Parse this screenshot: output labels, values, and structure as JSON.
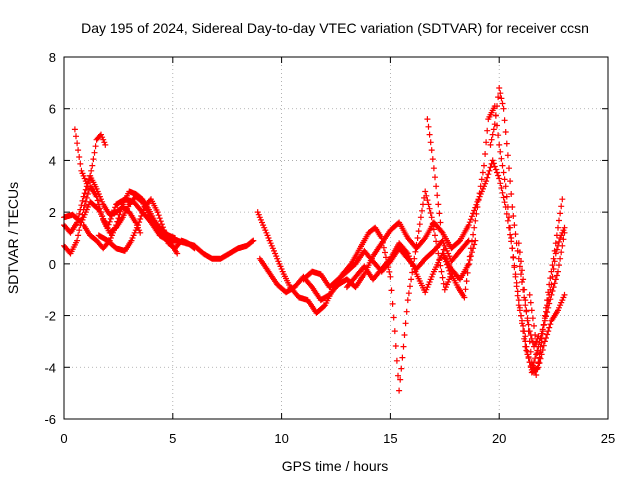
{
  "chart_data": {
    "type": "scatter",
    "title": "Day 195 of 2024, Sidereal Day-to-day VTEC variation (SDTVAR) for receiver ccsn",
    "xlabel": "GPS time / hours",
    "ylabel": "SDTVAR / TECUs",
    "xlim": [
      0,
      25
    ],
    "ylim": [
      -6,
      8
    ],
    "xticks": [
      0,
      5,
      10,
      15,
      20,
      25
    ],
    "yticks": [
      -6,
      -4,
      -2,
      0,
      2,
      4,
      6,
      8
    ],
    "grid": true,
    "marker": "+",
    "color": "#ff0000",
    "series": [
      {
        "name": "trace-1",
        "points": [
          [
            0.0,
            1.8
          ],
          [
            0.4,
            1.9
          ],
          [
            0.8,
            1.6
          ],
          [
            1.2,
            2.4
          ],
          [
            1.6,
            2.1
          ],
          [
            2.0,
            1.4
          ],
          [
            2.4,
            2.3
          ],
          [
            2.8,
            2.5
          ],
          [
            3.2,
            2.4
          ],
          [
            3.6,
            2.0
          ],
          [
            4.0,
            1.6
          ],
          [
            4.4,
            1.1
          ],
          [
            4.8,
            0.9
          ],
          [
            5.2,
            0.9
          ],
          [
            5.6,
            0.8
          ],
          [
            6.0,
            0.7
          ],
          [
            6.4,
            0.4
          ],
          [
            6.8,
            0.2
          ],
          [
            7.2,
            0.2
          ],
          [
            7.6,
            0.4
          ],
          [
            8.0,
            0.6
          ],
          [
            8.4,
            0.7
          ],
          [
            8.7,
            0.9
          ]
        ]
      },
      {
        "name": "trace-2",
        "points": [
          [
            0.0,
            0.7
          ],
          [
            0.3,
            0.4
          ],
          [
            0.6,
            0.9
          ],
          [
            0.9,
            2.1
          ],
          [
            1.2,
            3.0
          ],
          [
            1.5,
            2.6
          ],
          [
            1.8,
            1.7
          ],
          [
            2.1,
            1.2
          ],
          [
            2.4,
            1.4
          ],
          [
            2.7,
            1.8
          ],
          [
            3.0,
            2.3
          ],
          [
            3.3,
            2.6
          ],
          [
            3.6,
            2.4
          ],
          [
            3.9,
            1.9
          ],
          [
            4.2,
            1.6
          ],
          [
            4.5,
            1.3
          ],
          [
            4.8,
            1.1
          ],
          [
            5.1,
            1.0
          ]
        ]
      },
      {
        "name": "trace-3",
        "points": [
          [
            0.0,
            1.5
          ],
          [
            0.3,
            1.2
          ],
          [
            0.6,
            1.6
          ],
          [
            0.9,
            2.6
          ],
          [
            1.2,
            3.4
          ],
          [
            1.5,
            2.9
          ],
          [
            1.8,
            2.3
          ],
          [
            2.1,
            1.9
          ],
          [
            2.4,
            2.0
          ],
          [
            2.7,
            2.2
          ],
          [
            3.0,
            2.0
          ],
          [
            3.3,
            1.6
          ],
          [
            3.5,
            1.2
          ]
        ]
      },
      {
        "name": "trace-4",
        "points": [
          [
            0.5,
            5.2
          ],
          [
            0.8,
            3.6
          ],
          [
            1.1,
            3.0
          ],
          [
            1.3,
            3.8
          ],
          [
            1.5,
            4.8
          ],
          [
            1.7,
            5.0
          ],
          [
            1.9,
            4.6
          ]
        ]
      },
      {
        "name": "trace-5",
        "points": [
          [
            0.9,
            1.5
          ],
          [
            1.2,
            1.1
          ],
          [
            1.5,
            0.9
          ],
          [
            1.8,
            0.6
          ],
          [
            2.1,
            0.9
          ],
          [
            2.4,
            1.5
          ],
          [
            2.7,
            2.3
          ],
          [
            3.0,
            2.8
          ],
          [
            3.3,
            2.7
          ],
          [
            3.6,
            2.5
          ],
          [
            3.9,
            2.1
          ],
          [
            4.2,
            1.6
          ],
          [
            4.5,
            1.2
          ],
          [
            4.8,
            0.8
          ],
          [
            5.1,
            0.6
          ],
          [
            5.4,
            0.9
          ],
          [
            5.7,
            0.8
          ],
          [
            6.0,
            0.6
          ]
        ]
      },
      {
        "name": "trace-6",
        "points": [
          [
            1.6,
            1.1
          ],
          [
            2.0,
            0.9
          ],
          [
            2.4,
            0.6
          ],
          [
            2.8,
            0.5
          ],
          [
            3.1,
            0.9
          ],
          [
            3.4,
            1.5
          ],
          [
            3.7,
            2.2
          ],
          [
            4.0,
            2.5
          ],
          [
            4.3,
            2.0
          ],
          [
            4.6,
            1.3
          ],
          [
            4.9,
            0.8
          ],
          [
            5.2,
            0.4
          ]
        ]
      },
      {
        "name": "trace-7",
        "points": [
          [
            9.0,
            0.2
          ],
          [
            9.4,
            -0.3
          ],
          [
            9.8,
            -0.8
          ],
          [
            10.2,
            -1.1
          ],
          [
            10.6,
            -0.9
          ],
          [
            11.0,
            -0.5
          ],
          [
            11.4,
            -0.9
          ],
          [
            11.8,
            -1.4
          ],
          [
            12.2,
            -1.2
          ],
          [
            12.6,
            -0.8
          ],
          [
            13.0,
            -0.6
          ],
          [
            13.4,
            -0.9
          ],
          [
            13.8,
            -0.4
          ],
          [
            14.2,
            0.3
          ],
          [
            14.6,
            0.8
          ],
          [
            15.0,
            1.3
          ],
          [
            15.4,
            1.6
          ],
          [
            15.8,
            1.0
          ],
          [
            16.2,
            0.6
          ],
          [
            16.6,
            1.0
          ],
          [
            17.0,
            1.6
          ],
          [
            17.4,
            1.2
          ],
          [
            17.8,
            0.6
          ],
          [
            18.2,
            0.9
          ],
          [
            18.6,
            1.5
          ],
          [
            19.0,
            2.4
          ],
          [
            19.4,
            3.2
          ],
          [
            19.7,
            4.0
          ],
          [
            20.0,
            3.3
          ],
          [
            20.3,
            2.2
          ],
          [
            20.6,
            0.6
          ],
          [
            20.9,
            -1.4
          ],
          [
            21.2,
            -3.2
          ],
          [
            21.5,
            -4.1
          ],
          [
            21.8,
            -3.2
          ],
          [
            22.1,
            -2.2
          ],
          [
            22.4,
            -1.2
          ],
          [
            22.7,
            -0.3
          ],
          [
            23.0,
            1.2
          ]
        ]
      },
      {
        "name": "trace-8",
        "points": [
          [
            8.9,
            2.0
          ],
          [
            9.2,
            1.4
          ],
          [
            9.5,
            0.8
          ],
          [
            9.8,
            0.2
          ],
          [
            10.1,
            -0.4
          ],
          [
            10.4,
            -0.9
          ],
          [
            10.8,
            -1.3
          ],
          [
            11.2,
            -1.4
          ],
          [
            11.6,
            -1.9
          ],
          [
            12.0,
            -1.6
          ],
          [
            12.4,
            -0.9
          ],
          [
            12.8,
            -0.4
          ],
          [
            13.2,
            0.0
          ],
          [
            13.6,
            0.6
          ],
          [
            14.0,
            1.2
          ],
          [
            14.3,
            1.4
          ],
          [
            14.6,
            1.0
          ],
          [
            15.0,
            -0.5
          ],
          [
            15.2,
            -2.6
          ],
          [
            15.4,
            -4.9
          ],
          [
            15.6,
            -3.2
          ],
          [
            15.8,
            -1.4
          ],
          [
            16.1,
            0.2
          ],
          [
            16.4,
            1.8
          ],
          [
            16.6,
            2.8
          ],
          [
            16.9,
            1.8
          ],
          [
            17.2,
            0.4
          ],
          [
            17.5,
            -1.0
          ],
          [
            17.8,
            -0.4
          ],
          [
            18.1,
            -0.9
          ],
          [
            18.4,
            -1.3
          ],
          [
            18.7,
            0.6
          ],
          [
            19.0,
            2.2
          ],
          [
            19.3,
            3.8
          ],
          [
            19.5,
            5.6
          ],
          [
            19.8,
            6.1
          ],
          [
            20.0,
            4.6
          ],
          [
            20.3,
            3.0
          ],
          [
            20.6,
            0.6
          ],
          [
            20.9,
            -1.6
          ],
          [
            21.2,
            -2.8
          ]
        ]
      },
      {
        "name": "trace-9",
        "points": [
          [
            11.0,
            -0.6
          ],
          [
            11.4,
            -0.3
          ],
          [
            11.8,
            -0.4
          ],
          [
            12.2,
            -0.9
          ],
          [
            12.6,
            -0.6
          ],
          [
            13.0,
            -0.3
          ],
          [
            13.4,
            0.0
          ],
          [
            13.8,
            0.5
          ],
          [
            14.2,
            0.1
          ],
          [
            14.6,
            -0.3
          ],
          [
            15.0,
            0.1
          ],
          [
            15.4,
            0.6
          ],
          [
            15.8,
            0.2
          ],
          [
            16.2,
            -0.2
          ],
          [
            16.6,
            0.2
          ],
          [
            17.0,
            0.5
          ],
          [
            17.4,
            0.9
          ],
          [
            17.8,
            0.1
          ],
          [
            18.2,
            0.5
          ],
          [
            18.6,
            0.9
          ]
        ]
      },
      {
        "name": "trace-10",
        "points": [
          [
            13.0,
            -0.9
          ],
          [
            13.4,
            -0.5
          ],
          [
            13.8,
            -0.1
          ],
          [
            14.2,
            -0.6
          ],
          [
            14.6,
            -0.2
          ],
          [
            15.0,
            0.2
          ],
          [
            15.4,
            0.8
          ],
          [
            15.8,
            0.4
          ],
          [
            16.2,
            -0.4
          ],
          [
            16.6,
            -1.1
          ],
          [
            17.0,
            -0.3
          ],
          [
            17.4,
            0.4
          ],
          [
            17.8,
            -0.2
          ],
          [
            18.2,
            -0.6
          ],
          [
            18.6,
            0.0
          ],
          [
            18.9,
            0.9
          ]
        ]
      },
      {
        "name": "trace-11",
        "points": [
          [
            16.7,
            5.6
          ],
          [
            16.9,
            4.4
          ],
          [
            17.1,
            3.0
          ],
          [
            17.3,
            1.6
          ],
          [
            17.5,
            0.2
          ],
          [
            17.8,
            -0.5
          ]
        ]
      },
      {
        "name": "trace-12",
        "points": [
          [
            19.6,
            4.6
          ],
          [
            19.8,
            5.4
          ],
          [
            20.0,
            6.8
          ],
          [
            20.2,
            6.0
          ],
          [
            20.4,
            4.2
          ],
          [
            20.6,
            2.2
          ],
          [
            20.8,
            0.8
          ],
          [
            21.0,
            -0.4
          ],
          [
            21.2,
            -1.6
          ],
          [
            21.4,
            -2.6
          ],
          [
            21.6,
            -3.2
          ],
          [
            21.8,
            -2.8
          ]
        ]
      },
      {
        "name": "trace-13",
        "points": [
          [
            20.9,
            0.8
          ],
          [
            21.1,
            -0.6
          ],
          [
            21.3,
            -2.2
          ],
          [
            21.5,
            -3.8
          ],
          [
            21.7,
            -4.3
          ],
          [
            21.9,
            -3.4
          ],
          [
            22.1,
            -2.0
          ],
          [
            22.3,
            -0.8
          ],
          [
            22.5,
            0.2
          ],
          [
            22.7,
            1.4
          ],
          [
            22.9,
            2.5
          ]
        ]
      },
      {
        "name": "trace-14",
        "points": [
          [
            21.4,
            -1.2
          ],
          [
            21.6,
            -2.4
          ],
          [
            21.8,
            -3.8
          ],
          [
            22.0,
            -2.6
          ],
          [
            22.2,
            -1.6
          ],
          [
            22.4,
            -0.8
          ],
          [
            22.6,
            0.4
          ],
          [
            22.8,
            1.0
          ],
          [
            23.0,
            1.4
          ]
        ]
      },
      {
        "name": "trace-15",
        "points": [
          [
            21.2,
            -3.0
          ],
          [
            21.5,
            -4.2
          ],
          [
            21.8,
            -4.0
          ],
          [
            22.1,
            -3.0
          ],
          [
            22.4,
            -2.2
          ],
          [
            22.7,
            -1.8
          ],
          [
            23.0,
            -1.2
          ]
        ]
      }
    ]
  }
}
